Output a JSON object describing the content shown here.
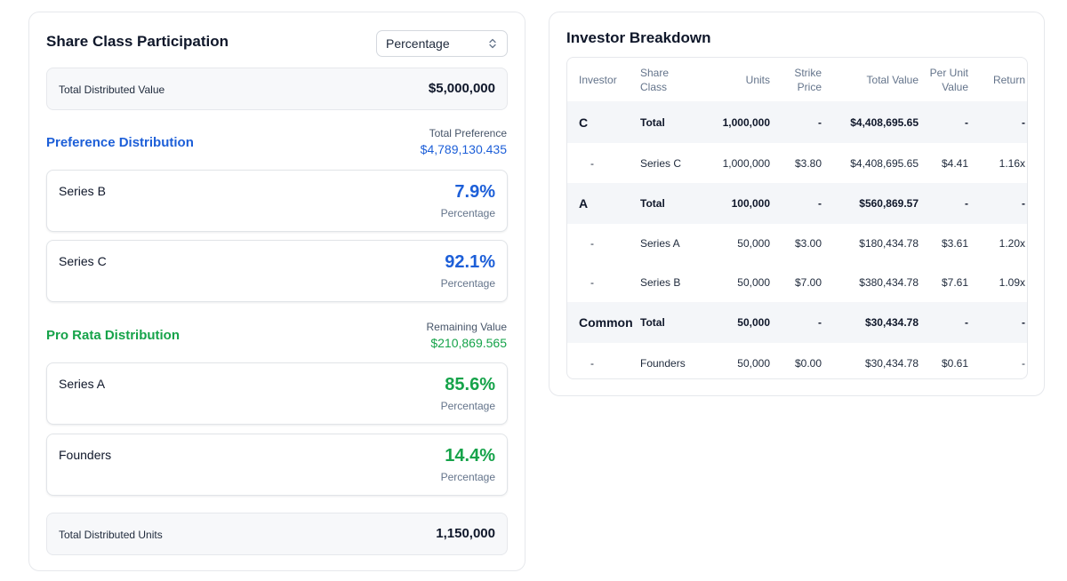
{
  "participation": {
    "title": "Share Class Participation",
    "select_value": "Percentage",
    "total_distributed_value_label": "Total Distributed Value",
    "total_distributed_value": "$5,000,000",
    "preference": {
      "heading": "Preference Distribution",
      "summary_label": "Total Preference",
      "summary_value": "$4,789,130.435",
      "color": "#1d5fd8",
      "items": [
        {
          "name": "Series B",
          "pct": "7.9%",
          "sub": "Percentage"
        },
        {
          "name": "Series C",
          "pct": "92.1%",
          "sub": "Percentage"
        }
      ]
    },
    "pro_rata": {
      "heading": "Pro Rata Distribution",
      "summary_label": "Remaining Value",
      "summary_value": "$210,869.565",
      "color": "#16a34a",
      "items": [
        {
          "name": "Series A",
          "pct": "85.6%",
          "sub": "Percentage"
        },
        {
          "name": "Founders",
          "pct": "14.4%",
          "sub": "Percentage"
        }
      ]
    },
    "total_distributed_units_label": "Total Distributed Units",
    "total_distributed_units": "1,150,000"
  },
  "breakdown": {
    "title": "Investor Breakdown",
    "headers": [
      "Investor",
      "Share Class",
      "Units",
      "Strike Price",
      "Total Value",
      "Per Unit Value",
      "Return"
    ],
    "rows": [
      {
        "type": "total",
        "cells": [
          "C",
          "Total",
          "1,000,000",
          "-",
          "$4,408,695.65",
          "-",
          "-"
        ]
      },
      {
        "type": "detail",
        "cells": [
          "-",
          "Series C",
          "1,000,000",
          "$3.80",
          "$4,408,695.65",
          "$4.41",
          "1.16x"
        ]
      },
      {
        "type": "total",
        "cells": [
          "A",
          "Total",
          "100,000",
          "-",
          "$560,869.57",
          "-",
          "-"
        ]
      },
      {
        "type": "detail",
        "cells": [
          "-",
          "Series A",
          "50,000",
          "$3.00",
          "$180,434.78",
          "$3.61",
          "1.20x"
        ]
      },
      {
        "type": "detail",
        "cells": [
          "-",
          "Series B",
          "50,000",
          "$7.00",
          "$380,434.78",
          "$7.61",
          "1.09x"
        ]
      },
      {
        "type": "total",
        "cells": [
          "Common",
          "Total",
          "50,000",
          "-",
          "$30,434.78",
          "-",
          "-"
        ]
      },
      {
        "type": "detail",
        "cells": [
          "-",
          "Founders",
          "50,000",
          "$0.00",
          "$30,434.78",
          "$0.61",
          "-"
        ]
      }
    ]
  },
  "icons": {
    "select_chevron": "chevron-up-down-icon"
  }
}
